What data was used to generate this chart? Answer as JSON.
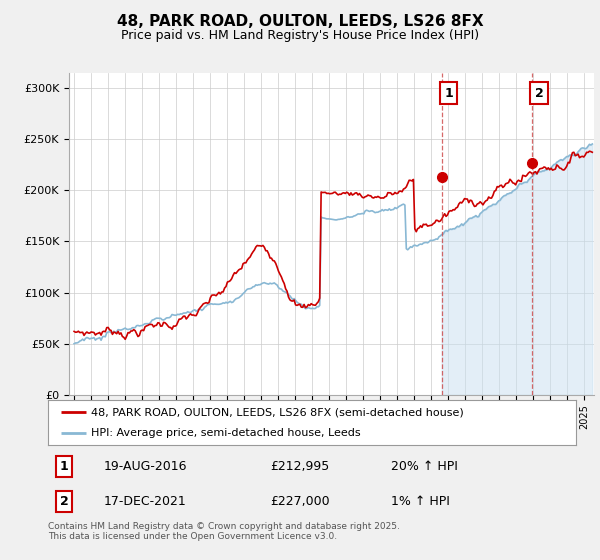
{
  "title_line1": "48, PARK ROAD, OULTON, LEEDS, LS26 8FX",
  "title_line2": "Price paid vs. HM Land Registry's House Price Index (HPI)",
  "ylabel_ticks": [
    "£0",
    "£50K",
    "£100K",
    "£150K",
    "£200K",
    "£250K",
    "£300K"
  ],
  "ytick_values": [
    0,
    50000,
    100000,
    150000,
    200000,
    250000,
    300000
  ],
  "ylim": [
    0,
    315000
  ],
  "xlim_start": 1994.7,
  "xlim_end": 2025.6,
  "hpi_color": "#89b8d4",
  "hpi_fill_color": "#c8dff0",
  "price_color": "#cc0000",
  "marker1_x": 2016.633,
  "marker1_y": 212995,
  "marker2_x": 2021.958,
  "marker2_y": 227000,
  "marker1_label": "1",
  "marker1_date": "19-AUG-2016",
  "marker1_price": "£212,995",
  "marker1_hpi": "20% ↑ HPI",
  "marker2_label": "2",
  "marker2_date": "17-DEC-2021",
  "marker2_price": "£227,000",
  "marker2_hpi": "1% ↑ HPI",
  "legend_label_price": "48, PARK ROAD, OULTON, LEEDS, LS26 8FX (semi-detached house)",
  "legend_label_hpi": "HPI: Average price, semi-detached house, Leeds",
  "footnote": "Contains HM Land Registry data © Crown copyright and database right 2025.\nThis data is licensed under the Open Government Licence v3.0.",
  "background_color": "#f0f0f0",
  "plot_bg_color": "#ffffff",
  "grid_color": "#cccccc",
  "title_fontsize": 11,
  "subtitle_fontsize": 9,
  "tick_fontsize": 8,
  "legend_fontsize": 8,
  "annot_fontsize": 9
}
